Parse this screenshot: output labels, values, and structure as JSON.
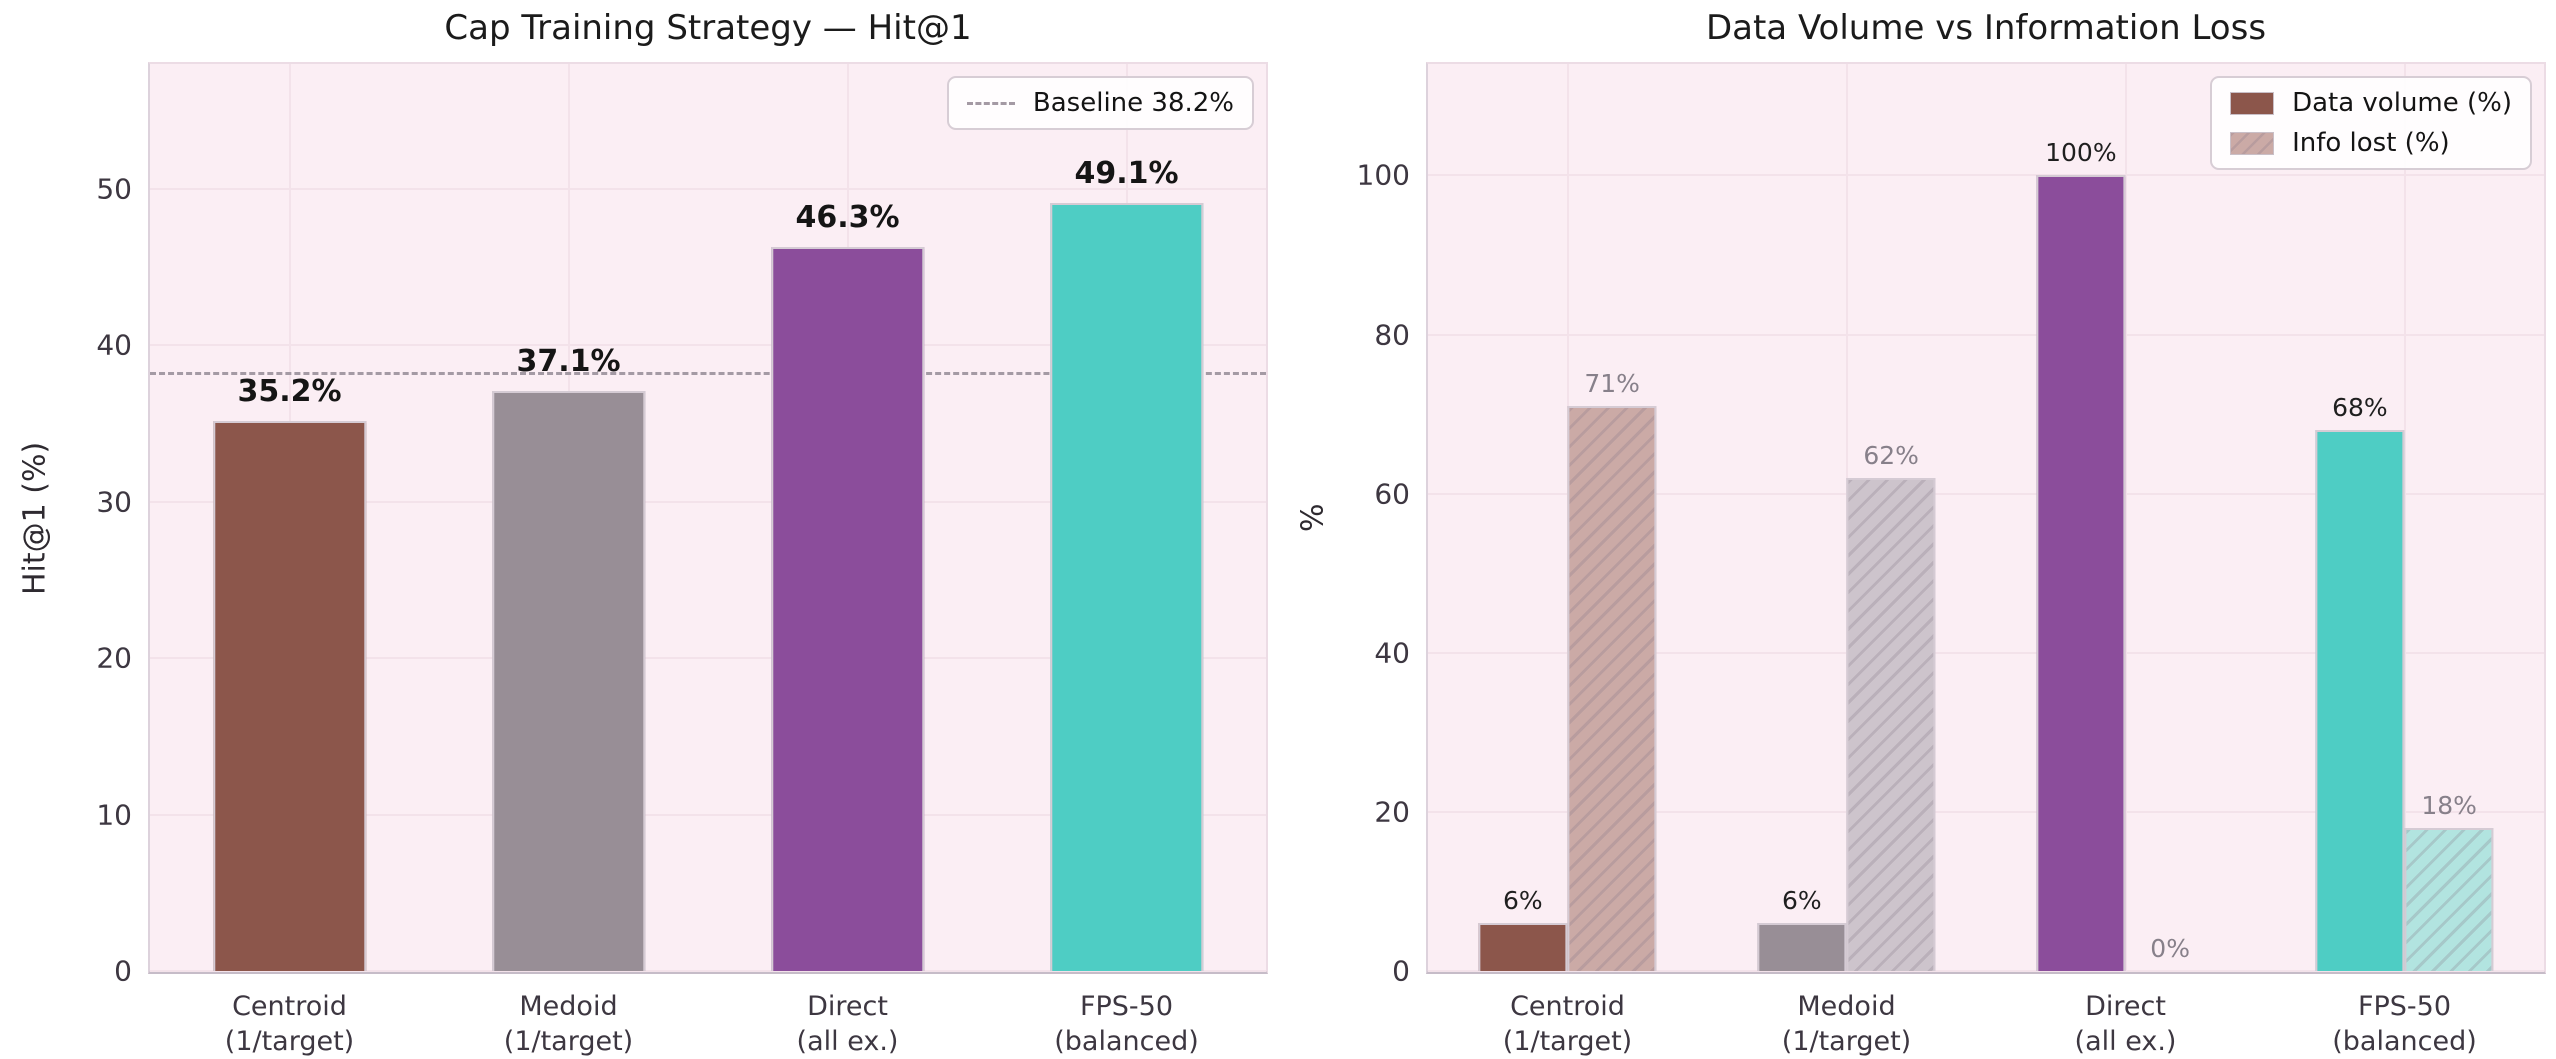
{
  "figure": {
    "background": "#ffffff",
    "plot_background": "#fbeef4",
    "grid_color": "#f3e2ea"
  },
  "chart_data": [
    {
      "type": "bar",
      "title": "Cap Training Strategy — Hit@1",
      "ylabel": "Hit@1 (%)",
      "xlabel": "",
      "categories": [
        "Centroid\n(1/target)",
        "Medoid\n(1/target)",
        "Direct\n(all ex.)",
        "FPS-50\n(balanced)"
      ],
      "values": [
        35.2,
        37.1,
        46.3,
        49.1
      ],
      "value_labels": [
        "35.2%",
        "37.1%",
        "46.3%",
        "49.1%"
      ],
      "bar_colors": [
        "#8c564b",
        "#988e96",
        "#8b4d9b",
        "#4ecdc4"
      ],
      "baseline": {
        "value": 38.2,
        "label": "Baseline 38.2%",
        "color": "#a49aa4",
        "style": "dashed"
      },
      "ylim": [
        0,
        58
      ],
      "yticks": [
        0,
        10,
        20,
        30,
        40,
        50
      ],
      "ytick_labels": [
        "0",
        "10",
        "20",
        "30",
        "40",
        "50"
      ],
      "grid": true,
      "legend_position": "top-right",
      "bar_width_fraction": 0.55
    },
    {
      "type": "grouped_bar",
      "title": "Data Volume vs Information Loss",
      "ylabel": "%",
      "xlabel": "",
      "categories": [
        "Centroid\n(1/target)",
        "Medoid\n(1/target)",
        "Direct\n(all ex.)",
        "FPS-50\n(balanced)"
      ],
      "series": [
        {
          "name": "Data volume (%)",
          "values": [
            6,
            6,
            100,
            68
          ],
          "value_labels": [
            "6%",
            "6%",
            "100%",
            "68%"
          ],
          "style": "solid"
        },
        {
          "name": "Info lost (%)",
          "values": [
            71,
            62,
            0,
            18
          ],
          "value_labels": [
            "71%",
            "62%",
            "0%",
            "18%"
          ],
          "style": "hatched"
        }
      ],
      "bar_colors": [
        "#8c564b",
        "#988e96",
        "#8b4d9b",
        "#4ecdc4"
      ],
      "bar_colors_light": [
        "#cbaaa6",
        "#cdc4cc",
        "#c8a7d0",
        "#b2e4e0"
      ],
      "ylim": [
        0,
        114
      ],
      "yticks": [
        0,
        20,
        40,
        60,
        80,
        100
      ],
      "ytick_labels": [
        "0",
        "20",
        "40",
        "60",
        "80",
        "100"
      ],
      "grid": true,
      "legend_position": "top-right",
      "bar_width_fraction": 0.32
    }
  ]
}
